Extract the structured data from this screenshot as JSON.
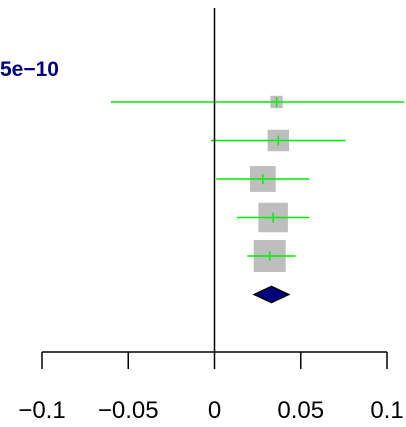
{
  "chart_data": {
    "type": "forest",
    "pvalue_label": "5e−10",
    "x_ticks": [
      {
        "value": -0.1,
        "label": "−0.1"
      },
      {
        "value": -0.05,
        "label": "−0.05"
      },
      {
        "value": 0,
        "label": "0"
      },
      {
        "value": 0.05,
        "label": "0.05"
      },
      {
        "value": 0.1,
        "label": "0.1"
      }
    ],
    "xlim": [
      -0.1,
      0.1
    ],
    "reference_line": 0,
    "studies": [
      {
        "estimate": 0.036,
        "ci_low": -0.06,
        "ci_high": 0.11,
        "weight": 0.15
      },
      {
        "estimate": 0.037,
        "ci_low": -0.002,
        "ci_high": 0.076,
        "weight": 0.45
      },
      {
        "estimate": 0.028,
        "ci_low": 0.001,
        "ci_high": 0.055,
        "weight": 0.65
      },
      {
        "estimate": 0.034,
        "ci_low": 0.013,
        "ci_high": 0.055,
        "weight": 0.85
      },
      {
        "estimate": 0.032,
        "ci_low": 0.019,
        "ci_high": 0.047,
        "weight": 1.0
      }
    ],
    "summary": {
      "estimate": 0.033,
      "ci_low": 0.023,
      "ci_high": 0.043
    },
    "colors": {
      "ci_line": "#00ee00",
      "box": "#bebebe",
      "summary_fill": "#000080",
      "axis": "#000000",
      "pvalue_text": "#000080"
    }
  }
}
